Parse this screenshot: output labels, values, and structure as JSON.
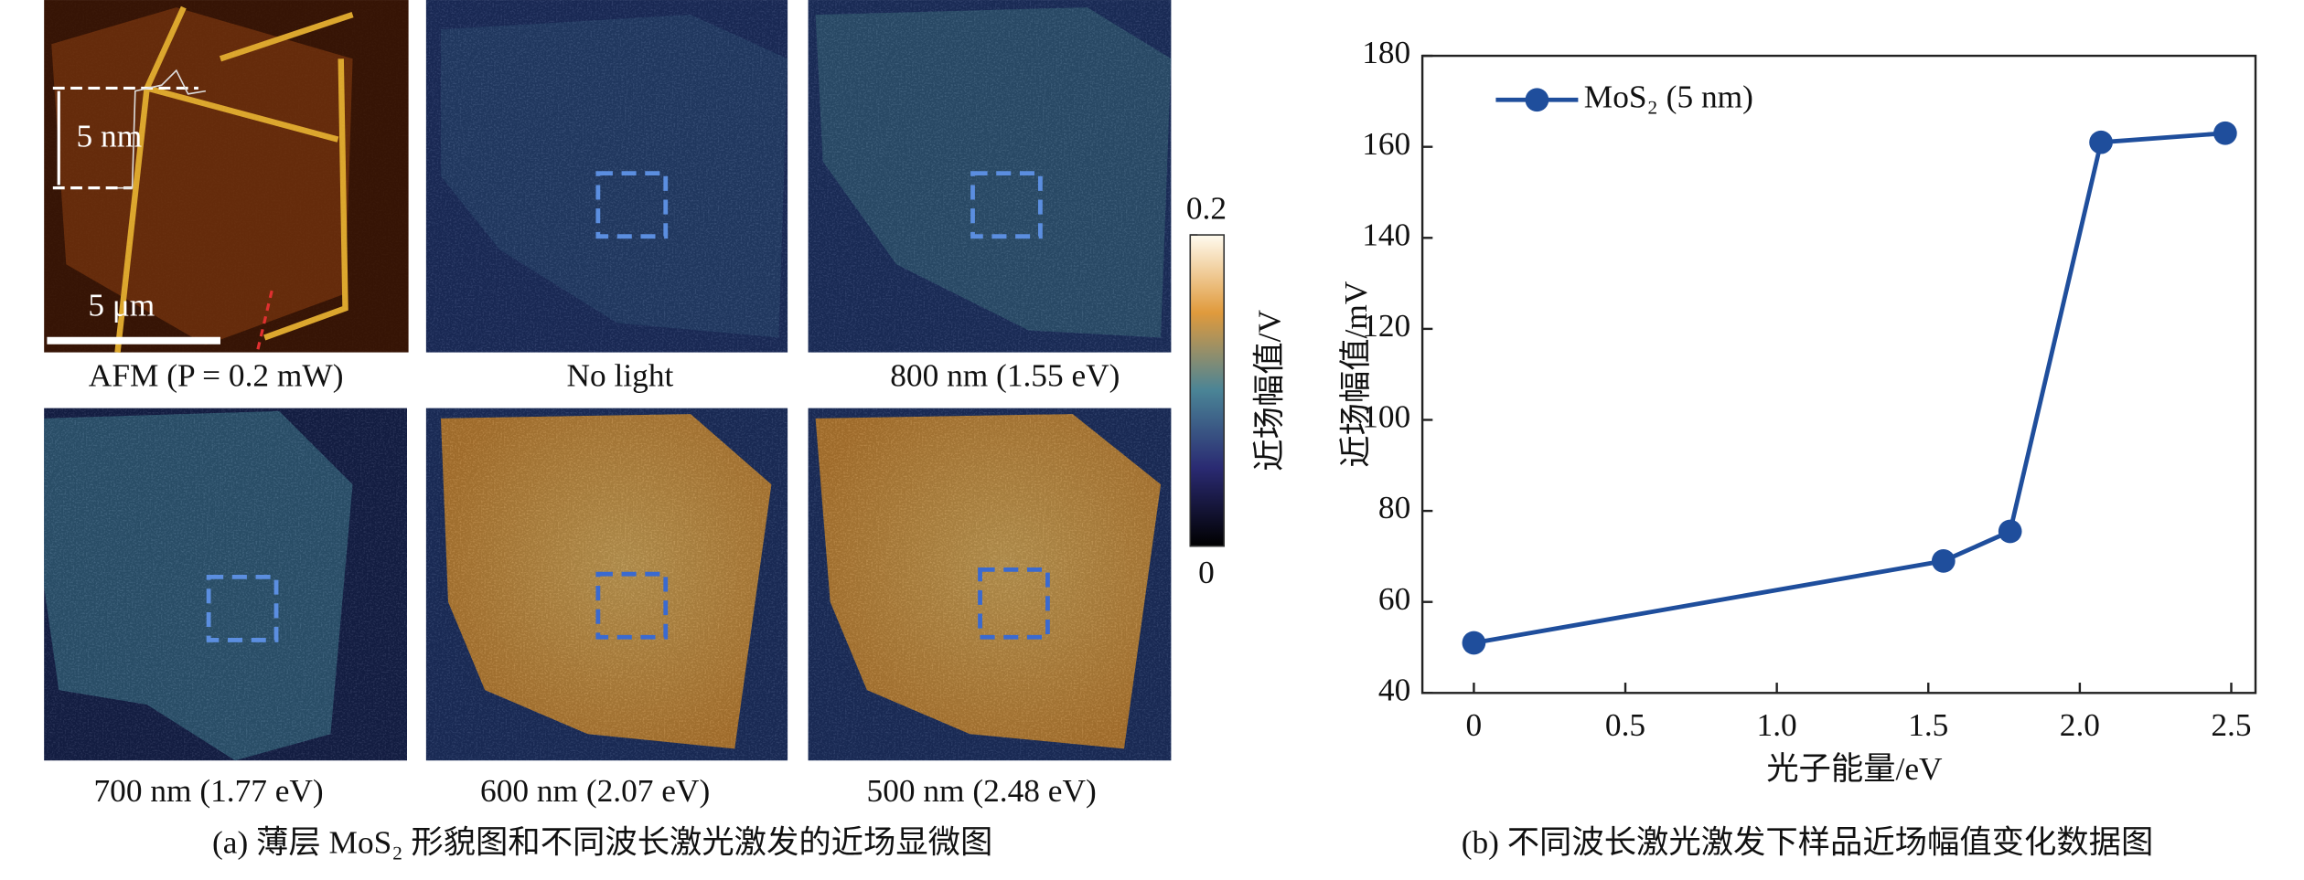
{
  "panel_a": {
    "afm": {
      "height_label": "5 nm",
      "scale_label": "5 μm",
      "caption": "AFM (P = 0.2 mW)"
    },
    "captions": [
      "No light",
      "800 nm (1.55 eV)",
      "700 nm (1.77 eV)",
      "600 nm (2.07 eV)",
      "500 nm (2.48 eV)"
    ],
    "colorbar": {
      "ticks": [
        0,
        0.2
      ],
      "label": "近场幅值/V"
    },
    "caption": "(a) 薄层 MoS₂ 形貌图和不同波长激光激发的近场显微图"
  },
  "chart_data": {
    "type": "line",
    "x": [
      0,
      1.55,
      1.77,
      2.07,
      2.48
    ],
    "series": [
      {
        "name": "MoS₂ (5 nm)",
        "color": "#1f4e9c",
        "values": [
          51,
          69,
          75.5,
          161,
          163
        ]
      }
    ],
    "xlim": [
      -0.17,
      2.58
    ],
    "ylim": [
      40,
      180
    ],
    "xticks": [
      0,
      0.5,
      {
        "value": 1,
        "label": "1.0"
      },
      1.5,
      {
        "value": 2,
        "label": "2.0"
      },
      2.5
    ],
    "yticks": [
      40,
      60,
      80,
      100,
      120,
      140,
      160,
      180
    ],
    "xlabel": "光子能量/eV",
    "ylabel": "近场幅值/mV",
    "legend": "upper-left",
    "caption": "(b) 不同波长激光激发下样品近场幅值变化数据图"
  }
}
